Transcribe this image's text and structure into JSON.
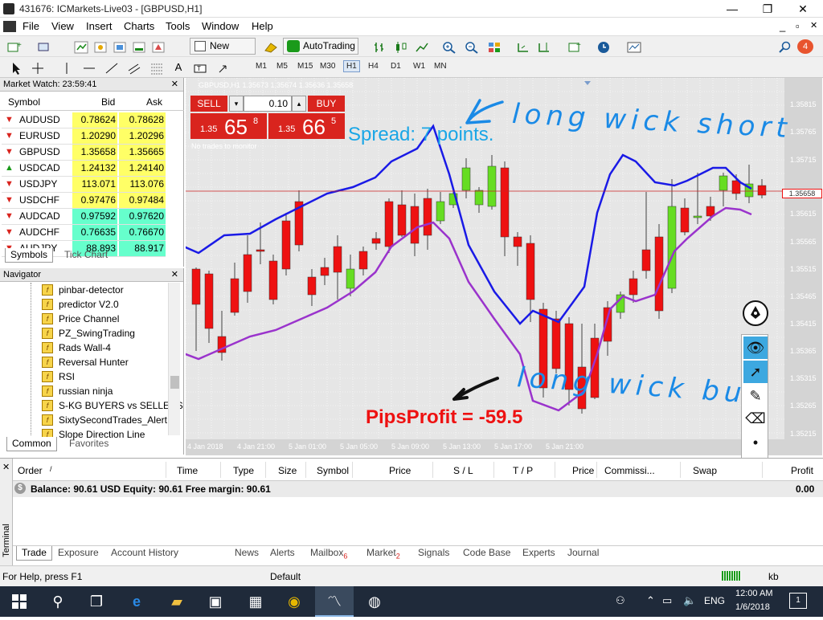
{
  "window": {
    "title": "431676: ICMarkets-Live03 - [GBPUSD,H1]",
    "min": "—",
    "max": "❐",
    "close": "✕"
  },
  "menu": [
    "File",
    "View",
    "Insert",
    "Charts",
    "Tools",
    "Window",
    "Help"
  ],
  "mdi_controls": {
    "min": "_",
    "restore": "▫",
    "close": "✕"
  },
  "toolbar": {
    "new_order": "New Order",
    "autotrading": "AutoTrading",
    "notif_count": "4"
  },
  "timeframes": [
    "M1",
    "M5",
    "M15",
    "M30",
    "H1",
    "H4",
    "D1",
    "W1",
    "MN"
  ],
  "active_timeframe": "H1",
  "market_watch": {
    "title": "Market Watch: 23:59:41",
    "headers": {
      "symbol": "Symbol",
      "bid": "Bid",
      "ask": "Ask"
    },
    "rows": [
      {
        "symbol": "AUDUSD",
        "bid": "0.78624",
        "ask": "0.78628",
        "color": "#ffff66",
        "dir": "down"
      },
      {
        "symbol": "EURUSD",
        "bid": "1.20290",
        "ask": "1.20296",
        "color": "#ffff66",
        "dir": "down"
      },
      {
        "symbol": "GBPUSD",
        "bid": "1.35658",
        "ask": "1.35665",
        "color": "#ffff66",
        "dir": "down"
      },
      {
        "symbol": "USDCAD",
        "bid": "1.24132",
        "ask": "1.24140",
        "color": "#ffff66",
        "dir": "up"
      },
      {
        "symbol": "USDJPY",
        "bid": "113.071",
        "ask": "113.076",
        "color": "#ffff66",
        "dir": "down"
      },
      {
        "symbol": "USDCHF",
        "bid": "0.97476",
        "ask": "0.97484",
        "color": "#ffff66",
        "dir": "down"
      },
      {
        "symbol": "AUDCAD",
        "bid": "0.97592",
        "ask": "0.97620",
        "color": "#66ffcc",
        "dir": "down"
      },
      {
        "symbol": "AUDCHF",
        "bid": "0.76635",
        "ask": "0.76670",
        "color": "#66ffcc",
        "dir": "down"
      },
      {
        "symbol": "AUDJPY",
        "bid": "88.893",
        "ask": "88.917",
        "color": "#66ffcc",
        "dir": "down"
      }
    ],
    "tabs": [
      "Symbols",
      "Tick Chart"
    ]
  },
  "navigator": {
    "title": "Navigator",
    "items": [
      "pinbar-detector",
      "predictor V2.0",
      "Price Channel",
      "PZ_SwingTrading",
      "Rads Wall-4",
      "Reversal Hunter",
      "RSI",
      "russian ninja",
      "S-KG BUYERS vs SELLERS",
      "SixtySecondTrades_Alert",
      "Slope Direction Line"
    ],
    "tabs": [
      "Common",
      "Favorites"
    ]
  },
  "chart": {
    "header": "GBPUSD,H1  1.35673 1.35674 1.35636 1.35658",
    "sell_label": "SELL",
    "buy_label": "BUY",
    "lot": "0.10",
    "sell_price_prefix": "1.35",
    "sell_price_big": "65",
    "sell_price_sup": "8",
    "buy_price_prefix": "1.35",
    "buy_price_big": "66",
    "buy_price_sup": "5",
    "no_trades": "No trades to monitor",
    "spread_text": "Spread: 7 points.",
    "pips_text": "PipsProfit = -59.5",
    "annotation_short": "long wick short",
    "annotation_buy": "long wick buy",
    "current_price": "1.35658",
    "price_labels": [
      "1.35815",
      "1.35765",
      "1.35715",
      "1.35615",
      "1.35565",
      "1.35515",
      "1.35465",
      "1.35415",
      "1.35365",
      "1.35315",
      "1.35265",
      "1.35215"
    ],
    "time_labels": [
      "4 Jan 2018",
      "4 Jan 21:00",
      "5 Jan 01:00",
      "5 Jan 05:00",
      "5 Jan 09:00",
      "5 Jan 13:00",
      "5 Jan 17:00",
      "5 Jan 21:00"
    ]
  },
  "terminal": {
    "side_label": "Terminal",
    "headers": [
      "Order",
      "/",
      "Time",
      "Type",
      "Size",
      "Symbol",
      "Price",
      "S / L",
      "T / P",
      "Price",
      "Commissi...",
      "Swap",
      "Profit"
    ],
    "balance_line": "Balance: 90.61 USD  Equity: 90.61  Free margin: 90.61",
    "balance_profit": "0.00",
    "tabs": [
      {
        "label": "Trade",
        "badge": ""
      },
      {
        "label": "Exposure",
        "badge": ""
      },
      {
        "label": "Account History",
        "badge": ""
      },
      {
        "label": "News",
        "badge": ""
      },
      {
        "label": "Alerts",
        "badge": ""
      },
      {
        "label": "Mailbox",
        "badge": "6"
      },
      {
        "label": "Market",
        "badge": "2"
      },
      {
        "label": "Signals",
        "badge": ""
      },
      {
        "label": "Code Base",
        "badge": ""
      },
      {
        "label": "Experts",
        "badge": ""
      },
      {
        "label": "Journal",
        "badge": ""
      }
    ]
  },
  "status": {
    "help": "For Help, press F1",
    "profile": "Default",
    "kb": "kb"
  },
  "taskbar": {
    "lang": "ENG",
    "time": "12:00 AM",
    "date": "1/6/2018",
    "notif": "1"
  },
  "colors": {
    "bull": "#66dd22",
    "bear": "#ee1111",
    "upper_line": "#1a1ae6",
    "lower_line": "#9a33cc",
    "annotation": "#1aa6e6",
    "pips": "#ee1111"
  }
}
